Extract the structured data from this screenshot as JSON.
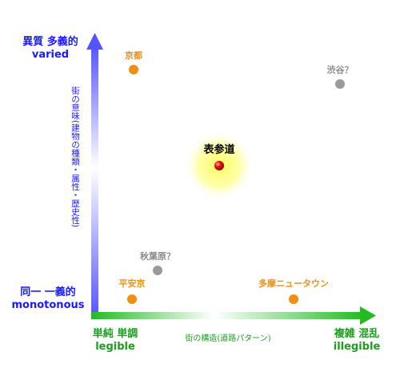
{
  "y_axis": {
    "top_label_ja": "異質 多義的",
    "top_label_en": "varied",
    "bottom_label_ja": "同一 一義的",
    "bottom_label_en": "monotonous",
    "title": "街の意味(建物の種類・属性・歴史性)"
  },
  "x_axis": {
    "left_label_ja": "単純 単調",
    "left_label_en": "legible",
    "right_label_ja": "複雑 混乱",
    "right_label_en": "illegible",
    "title": "街の構造(道路パターン)"
  },
  "points": {
    "kyoto": {
      "label": "京都",
      "color": "#ef8f12"
    },
    "shibuya": {
      "label": "渋谷？",
      "color": "#9a9a9a"
    },
    "omotesando": {
      "label": "表参道",
      "color": "#e00000"
    },
    "akihabara": {
      "label": "秋葉原？",
      "color": "#9a9a9a"
    },
    "heiankyo": {
      "label": "平安京",
      "color": "#ef8f12"
    },
    "tama": {
      "label": "多摩ニュータウン",
      "color": "#ef8f12"
    }
  },
  "colors": {
    "y_axis": "#6666ff",
    "x_axis": "#22bb22",
    "highlight_glow": "#ffff99"
  }
}
